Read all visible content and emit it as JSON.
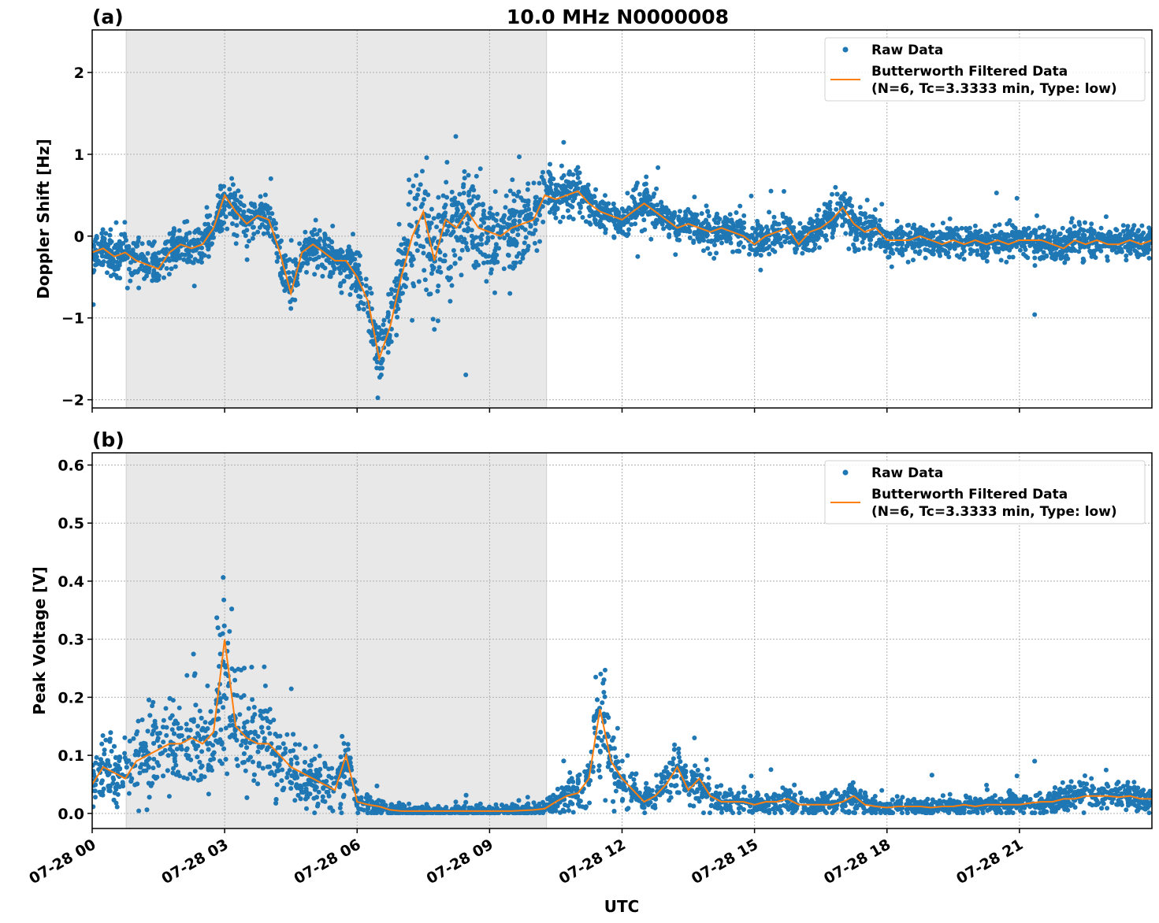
{
  "title": "10.0 MHz N0000008",
  "xlabel": "UTC",
  "x_tick_labels": [
    "07-28 00",
    "07-28 03",
    "07-28 06",
    "07-28 09",
    "07-28 12",
    "07-28 15",
    "07-28 18",
    "07-28 21"
  ],
  "colors": {
    "raw": "#1f77b4",
    "filtered": "#ff7f0e",
    "shade": "#e8e8e8",
    "grid": "#b0b0b0"
  },
  "chart_data": [
    {
      "panel_label": "(a)",
      "type": "scatter+line",
      "ylabel": "Doppler Shift [Hz]",
      "ylim": [
        -2.1,
        2.52
      ],
      "xlim_utc_hours": [
        0,
        24
      ],
      "y_ticks": [
        -2,
        -1,
        0,
        1,
        2
      ],
      "y_tick_labels": [
        "−2",
        "−1",
        "0",
        "1",
        "2"
      ],
      "grid": true,
      "shaded_interval_utc_hours": [
        0.77,
        10.29
      ],
      "legend": {
        "placement": "top-right",
        "entries": [
          "Raw Data",
          "Butterworth Filtered Data",
          "(N=6, Tc=3.3333 min, Type: low)"
        ]
      },
      "x_step_hours": 0.25,
      "filtered": [
        -0.2,
        -0.15,
        -0.25,
        -0.2,
        -0.3,
        -0.35,
        -0.4,
        -0.2,
        -0.1,
        -0.15,
        -0.1,
        0.1,
        0.5,
        0.3,
        0.15,
        0.25,
        0.2,
        -0.2,
        -0.7,
        -0.2,
        -0.1,
        -0.2,
        -0.3,
        -0.3,
        -0.5,
        -0.8,
        -1.5,
        -1.1,
        -0.5,
        0.0,
        0.3,
        -0.3,
        0.2,
        0.1,
        0.3,
        0.1,
        0.05,
        0.0,
        0.1,
        0.15,
        0.2,
        0.5,
        0.45,
        0.5,
        0.55,
        0.4,
        0.3,
        0.25,
        0.2,
        0.3,
        0.4,
        0.3,
        0.2,
        0.1,
        0.15,
        0.1,
        0.05,
        0.1,
        0.05,
        0.0,
        -0.1,
        0.0,
        0.05,
        0.1,
        -0.1,
        0.05,
        0.1,
        0.2,
        0.35,
        0.15,
        0.05,
        0.1,
        -0.05,
        -0.05,
        -0.05,
        0.0,
        -0.05,
        -0.1,
        -0.05,
        -0.1,
        -0.05,
        -0.1,
        -0.05,
        -0.1,
        -0.05,
        -0.05,
        -0.05,
        -0.1,
        -0.15,
        -0.05,
        -0.1,
        -0.05,
        -0.1,
        -0.1,
        -0.05,
        -0.1,
        -0.05
      ],
      "raw_spread": [
        0.25,
        0.25,
        0.25,
        0.25,
        0.25,
        0.25,
        0.25,
        0.25,
        0.25,
        0.25,
        0.25,
        0.25,
        0.35,
        0.3,
        0.25,
        0.25,
        0.25,
        0.3,
        0.3,
        0.25,
        0.25,
        0.25,
        0.25,
        0.3,
        0.35,
        0.35,
        0.35,
        0.4,
        0.6,
        0.7,
        0.7,
        0.7,
        0.7,
        0.7,
        0.6,
        0.6,
        0.5,
        0.5,
        0.5,
        0.5,
        0.4,
        0.35,
        0.3,
        0.3,
        0.3,
        0.25,
        0.2,
        0.2,
        0.2,
        0.25,
        0.25,
        0.25,
        0.2,
        0.2,
        0.2,
        0.2,
        0.2,
        0.2,
        0.2,
        0.2,
        0.25,
        0.2,
        0.2,
        0.2,
        0.2,
        0.2,
        0.2,
        0.25,
        0.3,
        0.25,
        0.2,
        0.2,
        0.2,
        0.2,
        0.2,
        0.2,
        0.2,
        0.2,
        0.2,
        0.2,
        0.2,
        0.2,
        0.2,
        0.2,
        0.2,
        0.2,
        0.2,
        0.2,
        0.2,
        0.2,
        0.2,
        0.2,
        0.2,
        0.2,
        0.2,
        0.2,
        0.2
      ]
    },
    {
      "panel_label": "(b)",
      "type": "scatter+line",
      "ylabel": "Peak Voltage [V]",
      "ylim": [
        -0.026,
        0.621
      ],
      "xlim_utc_hours": [
        0,
        24
      ],
      "y_ticks": [
        0,
        0.1,
        0.2,
        0.3,
        0.4,
        0.5,
        0.6
      ],
      "y_tick_labels": [
        "0.0",
        "0.1",
        "0.2",
        "0.3",
        "0.4",
        "0.5",
        "0.6"
      ],
      "grid": true,
      "shaded_interval_utc_hours": [
        0.77,
        10.29
      ],
      "legend": {
        "placement": "top-right",
        "entries": [
          "Raw Data",
          "Butterworth Filtered Data",
          "(N=6, Tc=3.3333 min, Type: low)"
        ]
      },
      "x_step_hours": 0.25,
      "filtered": [
        0.05,
        0.08,
        0.07,
        0.06,
        0.09,
        0.1,
        0.11,
        0.12,
        0.12,
        0.13,
        0.12,
        0.14,
        0.3,
        0.15,
        0.13,
        0.12,
        0.12,
        0.1,
        0.08,
        0.07,
        0.06,
        0.05,
        0.04,
        0.1,
        0.02,
        0.015,
        0.012,
        0.006,
        0.004,
        0.004,
        0.004,
        0.004,
        0.004,
        0.004,
        0.004,
        0.004,
        0.004,
        0.004,
        0.004,
        0.005,
        0.006,
        0.008,
        0.02,
        0.03,
        0.035,
        0.06,
        0.18,
        0.09,
        0.06,
        0.04,
        0.02,
        0.03,
        0.05,
        0.08,
        0.04,
        0.06,
        0.03,
        0.02,
        0.02,
        0.02,
        0.015,
        0.02,
        0.02,
        0.025,
        0.015,
        0.015,
        0.015,
        0.015,
        0.02,
        0.03,
        0.015,
        0.012,
        0.01,
        0.012,
        0.012,
        0.012,
        0.01,
        0.012,
        0.012,
        0.015,
        0.012,
        0.015,
        0.015,
        0.015,
        0.015,
        0.018,
        0.02,
        0.02,
        0.025,
        0.025,
        0.03,
        0.03,
        0.03,
        0.028,
        0.03,
        0.025,
        0.025
      ]
    }
  ]
}
